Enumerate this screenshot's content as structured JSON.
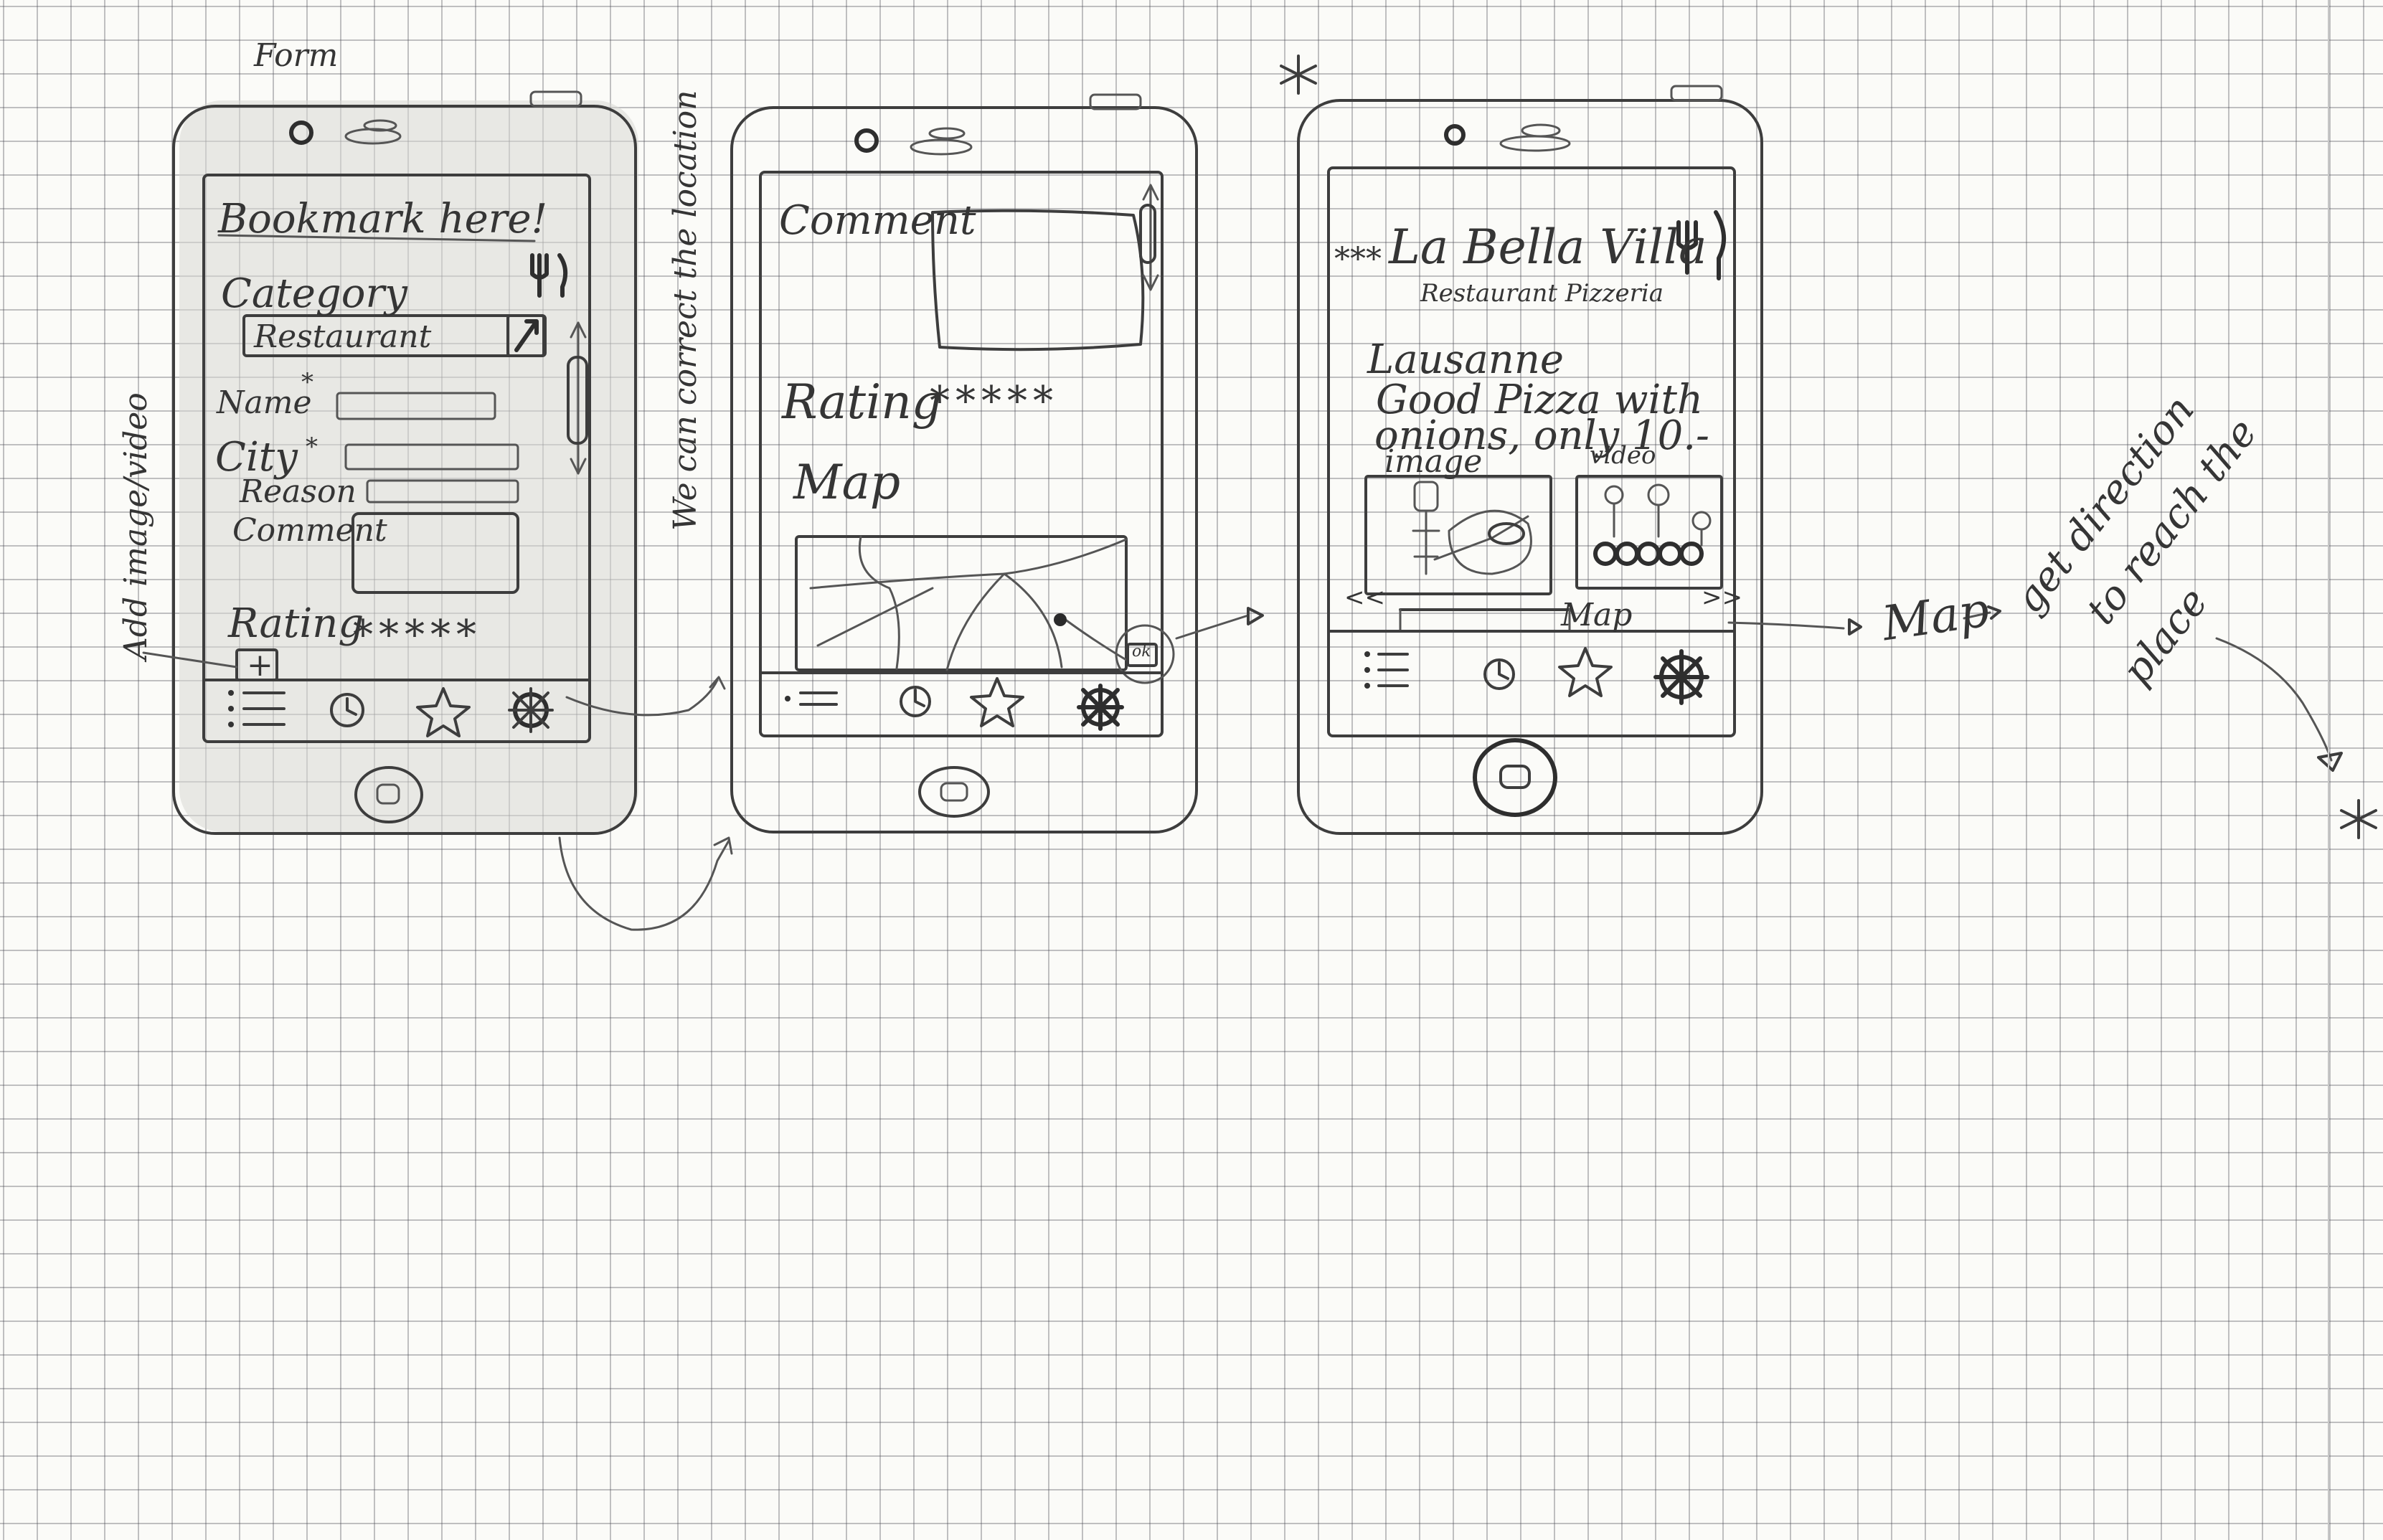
{
  "labels": {
    "form_title": "Form",
    "side_add_media": "Add image/video",
    "side_correct_location": "We can correct the location",
    "star_top": "*",
    "star_bottom": "*"
  },
  "screen1": {
    "header": "Bookmark here!",
    "category_label": "Category",
    "category_value": "Restaurant",
    "name_label": "Name",
    "required_mark": "*",
    "city_label": "City",
    "reason_label": "Reason",
    "comment_label": "Comment",
    "rating_label": "Rating",
    "rating_stars": "*****",
    "add_button": "+"
  },
  "screen2": {
    "comment_label": "Comment",
    "rating_label": "Rating",
    "rating_stars": "*****",
    "map_label": "Map",
    "ok_button": "ok"
  },
  "screen3": {
    "title_prefix": "***",
    "title": "La Bella Villa",
    "subtitle": "Restaurant Pizzeria",
    "city": "Lausanne",
    "description_line1": "Good Pizza with",
    "description_line2": "onions, only 10.-",
    "image_label": "image",
    "video_label": "video",
    "prev_arrow": "<<",
    "next_arrow": ">>",
    "map_link": "Map"
  },
  "annotations": {
    "map_arrow_label": "Map",
    "directions_line1": "get direction",
    "directions_line2": "to reach the",
    "directions_line3": "place"
  },
  "icons": {
    "tab_list": "list-icon",
    "tab_recent": "clock-icon",
    "tab_favorites": "star-icon",
    "tab_settings": "gear-icon",
    "category_icon": "fork-knife-icon",
    "home_button": "home-button-icon"
  }
}
